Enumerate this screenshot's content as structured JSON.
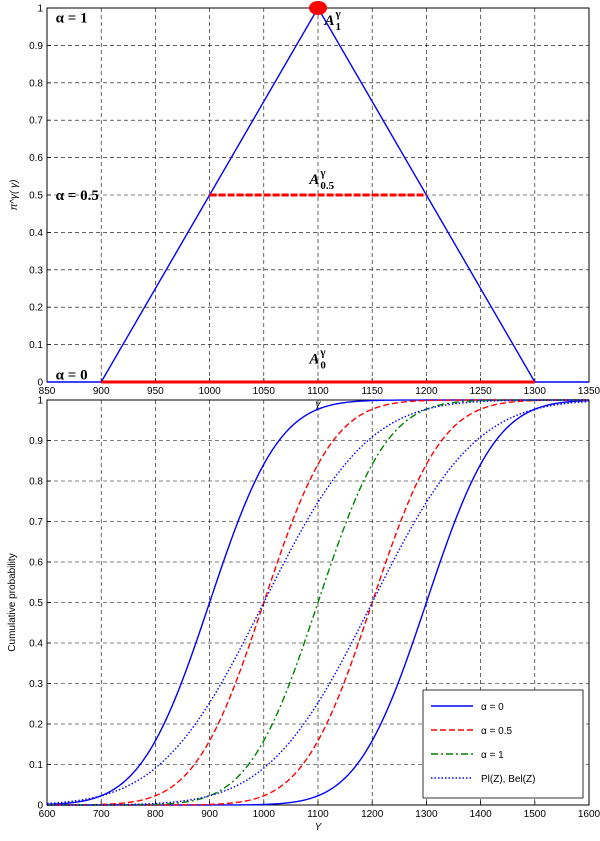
{
  "chart_data": [
    {
      "type": "line",
      "title": "",
      "xlabel": "γ",
      "ylabel": "π^γ( γ)",
      "xlim": [
        850,
        1350
      ],
      "ylim": [
        0,
        1
      ],
      "xticks": [
        850,
        900,
        950,
        1000,
        1050,
        1100,
        1150,
        1200,
        1250,
        1300,
        1350
      ],
      "yticks": [
        0,
        0.1,
        0.2,
        0.3,
        0.4,
        0.5,
        0.6,
        0.7,
        0.8,
        0.9,
        1
      ],
      "grid": true,
      "series": [
        {
          "color": "#0000ff",
          "style": "solid",
          "x": [
            850,
            900,
            1100,
            1300,
            1350
          ],
          "y": [
            0,
            0,
            1,
            0,
            0
          ]
        },
        {
          "color": "#ff0000",
          "style": "dashed",
          "x": [
            1000,
            1200
          ],
          "y": [
            0.5,
            0.5
          ]
        },
        {
          "color": "#ff0000",
          "style": "solid",
          "x": [
            900,
            1300
          ],
          "y": [
            0,
            0
          ]
        }
      ],
      "points": [
        {
          "x": 1100,
          "y": 1,
          "color": "#ff0000"
        }
      ],
      "annotations": [
        {
          "text": "α = 1",
          "x": 858,
          "y": 0.975
        },
        {
          "text": "α = 0.5",
          "x": 858,
          "y": 0.5
        },
        {
          "text": "α = 0",
          "x": 858,
          "y": 0.02
        }
      ],
      "sets": [
        {
          "base": "A",
          "sup": "γ",
          "sub": "1",
          "x": 1106,
          "y": 0.97
        },
        {
          "base": "A",
          "sup": "γ",
          "sub": "0.5",
          "x": 1092,
          "y": 0.545
        },
        {
          "base": "A",
          "sup": "γ",
          "sub": "0",
          "x": 1092,
          "y": 0.065
        }
      ]
    },
    {
      "type": "line",
      "title": "",
      "xlabel": "Y",
      "ylabel": "Cumulative probability",
      "xlim": [
        600,
        1600
      ],
      "ylim": [
        0,
        1
      ],
      "xticks": [
        600,
        700,
        800,
        900,
        1000,
        1100,
        1200,
        1300,
        1400,
        1500,
        1600
      ],
      "yticks": [
        0,
        0.1,
        0.2,
        0.3,
        0.4,
        0.5,
        0.6,
        0.7,
        0.8,
        0.9,
        1
      ],
      "grid": true,
      "legend_position": "bottom-right",
      "legend": [
        {
          "label": "α = 0",
          "color": "#0000ff",
          "style": "solid"
        },
        {
          "label": "α = 0.5",
          "color": "#ff0000",
          "style": "dashed"
        },
        {
          "label": "α = 1",
          "color": "#008000",
          "style": "dashdot"
        },
        {
          "label": "Pl(Z), Bel(Z)",
          "color": "#0000ff",
          "style": "dotted"
        }
      ],
      "series": [
        {
          "color": "#0000ff",
          "style": "solid",
          "cdf_mean": 900,
          "cdf_sd": 100
        },
        {
          "color": "#0000ff",
          "style": "solid",
          "cdf_mean": 1300,
          "cdf_sd": 100
        },
        {
          "color": "#ff0000",
          "style": "dashed",
          "cdf_mean": 1000,
          "cdf_sd": 100
        },
        {
          "color": "#ff0000",
          "style": "dashed",
          "cdf_mean": 1200,
          "cdf_sd": 100
        },
        {
          "color": "#008000",
          "style": "dashdot",
          "cdf_mean": 1100,
          "cdf_sd": 100
        },
        {
          "color": "#0000ff",
          "style": "dotted",
          "cdf_mean": 1000,
          "cdf_sd": 150
        },
        {
          "color": "#0000ff",
          "style": "dotted",
          "cdf_mean": 1200,
          "cdf_sd": 150
        }
      ]
    }
  ]
}
